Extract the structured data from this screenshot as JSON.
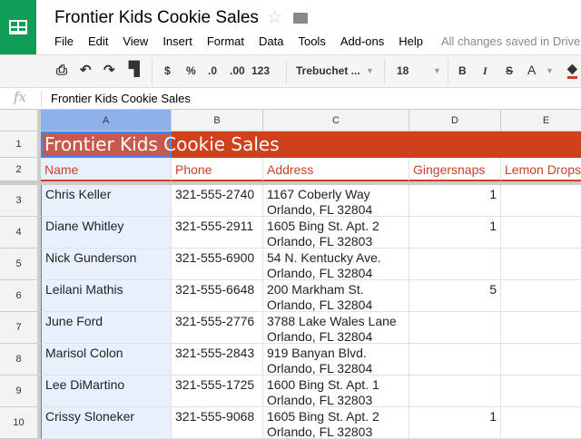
{
  "app": {
    "title": "Frontier Kids Cookie Sales",
    "save_status": "All changes saved in Drive",
    "brand_color": "#0f9d58"
  },
  "menu": [
    "File",
    "Edit",
    "View",
    "Insert",
    "Format",
    "Data",
    "Tools",
    "Add-ons",
    "Help"
  ],
  "toolbar": {
    "currency": "$",
    "percent": "%",
    "dec_less": ".0",
    "dec_more": ".00",
    "format": "123",
    "font": "Trebuchet ...",
    "size": "18",
    "bold": "B",
    "italic": "I",
    "strike": "S",
    "text_color": "A"
  },
  "formula": {
    "label": "fx",
    "value": "Frontier Kids Cookie Sales"
  },
  "columns": [
    "A",
    "B",
    "C",
    "D",
    "E"
  ],
  "sheet": {
    "title": "Frontier Kids Cookie Sales",
    "title_color": "#cf401c",
    "headers": [
      "Name",
      "Phone",
      "Address",
      "Gingersnaps",
      "Lemon Drops"
    ],
    "rows": [
      {
        "n": "3",
        "name": "Chris Keller",
        "phone": "321-555-2740",
        "addr1": "1167 Coberly Way",
        "addr2": "Orlando, FL 32804",
        "ginger": "1"
      },
      {
        "n": "4",
        "name": "Diane Whitley",
        "phone": "321-555-2911",
        "addr1": "1605 Bing St. Apt. 2",
        "addr2": "Orlando, FL 32803",
        "ginger": "1"
      },
      {
        "n": "5",
        "name": "Nick Gunderson",
        "phone": "321-555-6900",
        "addr1": "54 N. Kentucky Ave.",
        "addr2": "Orlando, FL 32804",
        "ginger": ""
      },
      {
        "n": "6",
        "name": "Leilani Mathis",
        "phone": "321-555-6648",
        "addr1": "200 Markham St.",
        "addr2": "Orlando, FL 32804",
        "ginger": "5"
      },
      {
        "n": "7",
        "name": "June Ford",
        "phone": "321-555-2776",
        "addr1": "3788 Lake Wales Lane",
        "addr2": "Orlando, FL 32804",
        "ginger": ""
      },
      {
        "n": "8",
        "name": "Marisol Colon",
        "phone": "321-555-2843",
        "addr1": "919 Banyan Blvd.",
        "addr2": "Orlando, FL 32804",
        "ginger": ""
      },
      {
        "n": "9",
        "name": "Lee DiMartino",
        "phone": "321-555-1725",
        "addr1": "1600 Bing St. Apt. 1",
        "addr2": "Orlando, FL 32803",
        "ginger": ""
      },
      {
        "n": "10",
        "name": "Crissy Sloneker",
        "phone": "321-555-9068",
        "addr1": "1605 Bing St. Apt. 2",
        "addr2": "Orlando, FL 32803",
        "ginger": "1"
      }
    ]
  }
}
